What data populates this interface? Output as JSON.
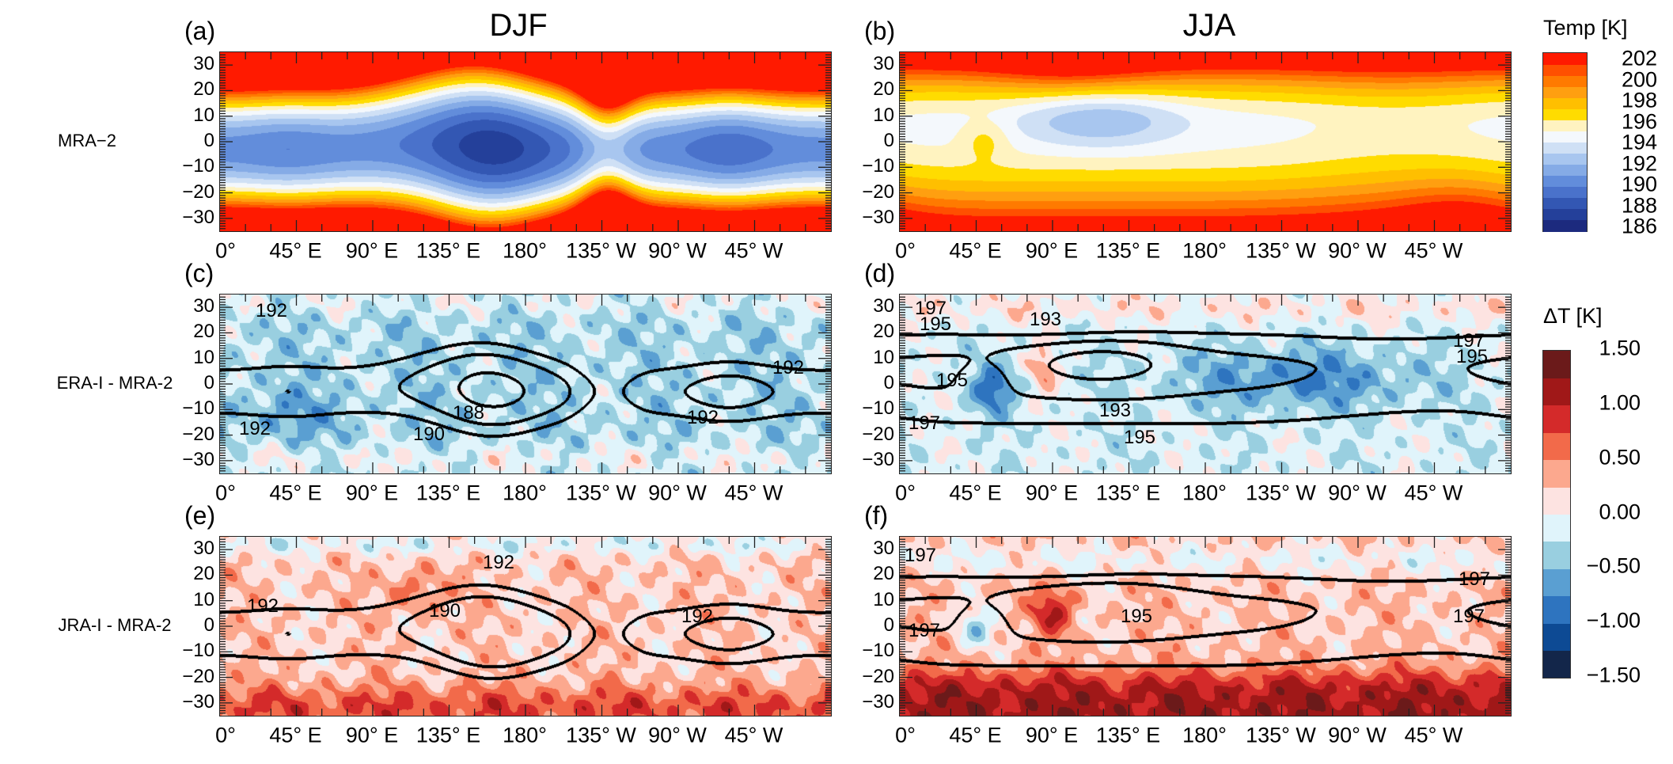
{
  "figure": {
    "column_titles": [
      "DJF",
      "JJA"
    ],
    "row_labels": [
      "MRA−2",
      "ERA-I - MRA-2",
      "JRA-I - MRA-2"
    ],
    "lon_tick_labels": [
      "0°",
      "45° E",
      "90° E",
      "135° E",
      "180°",
      "135° W",
      "90° W",
      "45° W"
    ],
    "lat_tick_labels": [
      "30",
      "20",
      "10",
      "0",
      "−10",
      "−20",
      "−30"
    ]
  },
  "colorbars": {
    "temp": {
      "title": "Temp [K]",
      "tick_labels": [
        "202",
        "200",
        "198",
        "196",
        "194",
        "192",
        "190",
        "188",
        "186"
      ],
      "range": [
        186,
        202
      ],
      "colors_low_to_high": [
        "#1c2a7e",
        "#24409a",
        "#3357b3",
        "#4a72cb",
        "#628ddb",
        "#85abe6",
        "#a8c6ef",
        "#cfe0f5",
        "#f4f8fc",
        "#fff3c0",
        "#ffdc00",
        "#ffbf00",
        "#ff9f10",
        "#ff7a00",
        "#ff5000",
        "#ff1a00"
      ]
    },
    "delta": {
      "title": "ΔT [K]",
      "tick_labels": [
        "1.50",
        "1.00",
        "0.50",
        "0.00",
        "−0.50",
        "−1.00",
        "−1.50"
      ],
      "range": [
        -1.5,
        1.5
      ],
      "colors_low_to_high": [
        "#13264a",
        "#0d4a94",
        "#2e74bf",
        "#5a9fd2",
        "#99cfe0",
        "#e0f4fb",
        "#fde3e1",
        "#fca88e",
        "#f26a4a",
        "#d42a2a",
        "#a01818",
        "#6b1a1a"
      ]
    }
  },
  "chart_data": [
    {
      "panel": "(a)",
      "type": "heatmap",
      "season": "DJF",
      "field": "MRA−2",
      "variable": "Temp [K]",
      "colorbar": "temp",
      "xlim": [
        0,
        360
      ],
      "ylim": [
        -35,
        35
      ],
      "contour_levels": [],
      "contour_labels": []
    },
    {
      "panel": "(b)",
      "type": "heatmap",
      "season": "JJA",
      "field": "MRA−2",
      "variable": "Temp [K]",
      "colorbar": "temp",
      "xlim": [
        0,
        360
      ],
      "ylim": [
        -35,
        35
      ],
      "contour_levels": [],
      "contour_labels": []
    },
    {
      "panel": "(c)",
      "type": "heatmap",
      "season": "DJF",
      "field": "ERA-I - MRA-2",
      "variable": "ΔT [K]",
      "colorbar": "delta",
      "xlim": [
        0,
        360
      ],
      "ylim": [
        -35,
        35
      ],
      "contour_levels": [
        188,
        190,
        192
      ],
      "contour_labels": [
        "192",
        "192",
        "188",
        "190",
        "192",
        "192"
      ]
    },
    {
      "panel": "(d)",
      "type": "heatmap",
      "season": "JJA",
      "field": "ERA-I - MRA-2",
      "variable": "ΔT [K]",
      "colorbar": "delta",
      "xlim": [
        0,
        360
      ],
      "ylim": [
        -35,
        35
      ],
      "contour_levels": [
        193,
        195,
        197
      ],
      "contour_labels": [
        "197",
        "195",
        "193",
        "195",
        "197",
        "193",
        "195",
        "197",
        "195"
      ]
    },
    {
      "panel": "(e)",
      "type": "heatmap",
      "season": "DJF",
      "field": "JRA-I - MRA-2",
      "variable": "ΔT [K]",
      "colorbar": "delta",
      "xlim": [
        0,
        360
      ],
      "ylim": [
        -35,
        35
      ],
      "contour_levels": [
        190,
        192
      ],
      "contour_labels": [
        "192",
        "192",
        "190",
        "192"
      ]
    },
    {
      "panel": "(f)",
      "type": "heatmap",
      "season": "JJA",
      "field": "JRA-I - MRA-2",
      "variable": "ΔT [K]",
      "colorbar": "delta",
      "xlim": [
        0,
        360
      ],
      "ylim": [
        -35,
        35
      ],
      "contour_levels": [
        195,
        197
      ],
      "contour_labels": [
        "197",
        "195",
        "197",
        "197",
        "197"
      ]
    }
  ]
}
